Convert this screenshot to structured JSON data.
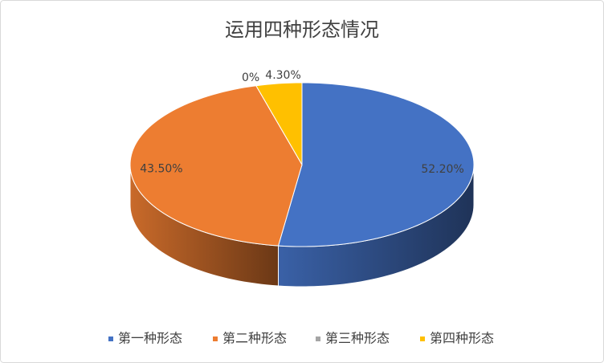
{
  "chart_data": {
    "type": "pie3d",
    "title": "运用四种形态情况",
    "categories": [
      "第一种形态",
      "第二种形态",
      "第三种形态",
      "第四种形态"
    ],
    "values": [
      52.2,
      43.5,
      0,
      4.3
    ],
    "value_labels": [
      "52.20%",
      "43.50%",
      "0%",
      "4.30%"
    ],
    "colors": [
      "#4472c4",
      "#ed7d31",
      "#a5a5a5",
      "#ffc000"
    ],
    "legend": "bottom"
  }
}
